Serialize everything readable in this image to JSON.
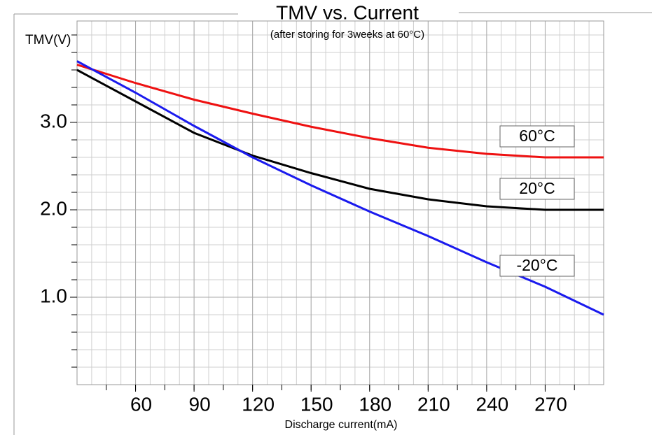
{
  "chart_data": {
    "type": "line",
    "title": "TMV vs. Current",
    "subtitle": "(after storing for 3weeks at 60°C)",
    "y_label": "TMV(V)",
    "x_label": "Discharge current(mA)",
    "x": [
      30,
      60,
      90,
      120,
      150,
      180,
      210,
      240,
      270,
      300
    ],
    "series": [
      {
        "name": "60°C",
        "color": "#ee1111",
        "values": [
          3.66,
          3.45,
          3.26,
          3.1,
          2.95,
          2.82,
          2.71,
          2.64,
          2.6,
          2.6
        ]
      },
      {
        "name": "20°C",
        "color": "#000000",
        "values": [
          3.6,
          3.24,
          2.88,
          2.62,
          2.42,
          2.24,
          2.12,
          2.04,
          2.0,
          2.0
        ]
      },
      {
        "name": "-20°C",
        "color": "#1a1aee",
        "values": [
          3.7,
          3.34,
          2.96,
          2.6,
          2.28,
          1.98,
          1.7,
          1.4,
          1.12,
          0.8
        ]
      }
    ],
    "xlim": [
      30,
      300
    ],
    "xticks": [
      60,
      90,
      120,
      150,
      180,
      210,
      240,
      270
    ],
    "ylim": [
      0,
      4.16
    ],
    "yticks": [
      {
        "value": 1,
        "label": "1.0"
      },
      {
        "value": 2,
        "label": "2.0"
      },
      {
        "value": 3,
        "label": "3.0"
      }
    ],
    "grid": true
  }
}
